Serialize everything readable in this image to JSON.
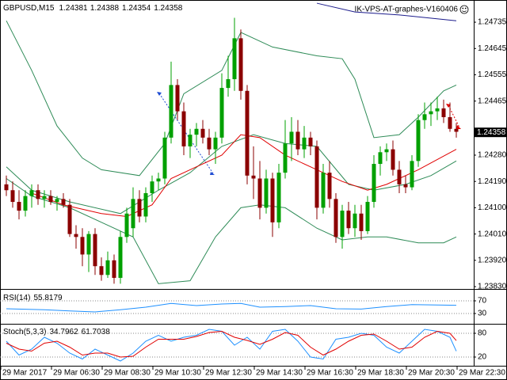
{
  "chart_data": [
    {
      "type": "candlestick",
      "title": "GBPUSD,M15",
      "header_values": [
        1.24381,
        1.24388,
        1.24354,
        1.24358
      ],
      "watermark": "IK-VPS-AT-graphes-V160406",
      "open": [
        1.2418,
        1.2416,
        1.2412,
        1.2409,
        1.2414,
        1.2416,
        1.2413,
        1.2414,
        1.2412,
        1.2413,
        1.2411,
        1.2401,
        1.24,
        1.2394,
        1.2401,
        1.239,
        1.2387,
        1.2392,
        1.2386,
        1.24,
        1.2403,
        1.2413,
        1.2407,
        1.2415,
        1.2419,
        1.242,
        1.2434,
        1.2452,
        1.2443,
        1.2431,
        1.2435,
        1.2437,
        1.2434,
        1.243,
        1.2434,
        1.2451,
        1.2454,
        1.2468,
        1.245,
        1.2421,
        1.242,
        1.241,
        1.242,
        1.2405,
        1.2422,
        1.2432,
        1.2436,
        1.243,
        1.2434,
        1.2431,
        1.241,
        1.2422,
        1.2413,
        1.24,
        1.2409,
        1.2403,
        1.2408,
        1.2402,
        1.2412,
        1.2425,
        1.2429,
        1.243,
        1.2423,
        1.2418,
        1.2417,
        1.2426,
        1.244,
        1.2442,
        1.2443,
        1.2444,
        1.2441,
        1.2437
      ],
      "high": [
        1.2421,
        1.2419,
        1.2416,
        1.2416,
        1.2418,
        1.2418,
        1.2416,
        1.2416,
        1.2414,
        1.2415,
        1.2413,
        1.2404,
        1.2403,
        1.2402,
        1.2403,
        1.2393,
        1.2395,
        1.2394,
        1.2402,
        1.241,
        1.2417,
        1.2416,
        1.2417,
        1.2421,
        1.2422,
        1.2436,
        1.246,
        1.2454,
        1.2446,
        1.2437,
        1.2439,
        1.244,
        1.2437,
        1.2436,
        1.2456,
        1.2462,
        1.2475,
        1.2471,
        1.2452,
        1.2431,
        1.2426,
        1.2423,
        1.2422,
        1.2425,
        1.244,
        1.2441,
        1.244,
        1.2438,
        1.2436,
        1.2433,
        1.2425,
        1.2426,
        1.2415,
        1.2411,
        1.2412,
        1.2411,
        1.2411,
        1.2414,
        1.2428,
        1.2431,
        1.2432,
        1.2433,
        1.2426,
        1.2421,
        1.2428,
        1.2442,
        1.2446,
        1.2446,
        1.2448,
        1.2447,
        1.2446,
        1.2439
      ],
      "low": [
        1.2414,
        1.241,
        1.2406,
        1.2407,
        1.241,
        1.2411,
        1.241,
        1.2411,
        1.2409,
        1.241,
        1.24,
        1.2396,
        1.239,
        1.2388,
        1.2387,
        1.2385,
        1.2386,
        1.2384,
        1.2384,
        1.2398,
        1.24,
        1.2405,
        1.2405,
        1.2412,
        1.2416,
        1.2418,
        1.2432,
        1.244,
        1.2428,
        1.2427,
        1.2431,
        1.2432,
        1.2428,
        1.2425,
        1.2432,
        1.2448,
        1.245,
        1.2447,
        1.2418,
        1.2413,
        1.2406,
        1.2408,
        1.24,
        1.2403,
        1.242,
        1.2426,
        1.2428,
        1.2427,
        1.2428,
        1.2406,
        1.2408,
        1.241,
        1.2398,
        1.2396,
        1.2401,
        1.24,
        1.2399,
        1.2401,
        1.241,
        1.2421,
        1.2426,
        1.2421,
        1.2415,
        1.2415,
        1.2416,
        1.2424,
        1.2437,
        1.2438,
        1.244,
        1.2439,
        1.2436,
        1.2434
      ],
      "close": [
        1.2416,
        1.2412,
        1.2409,
        1.2414,
        1.2416,
        1.2413,
        1.2414,
        1.2412,
        1.2413,
        1.2411,
        1.2401,
        1.24,
        1.2394,
        1.2401,
        1.239,
        1.2387,
        1.2392,
        1.2386,
        1.24,
        1.2408,
        1.2413,
        1.2407,
        1.2415,
        1.2419,
        1.242,
        1.2434,
        1.2452,
        1.2443,
        1.2431,
        1.2435,
        1.2437,
        1.2434,
        1.243,
        1.2434,
        1.2451,
        1.2454,
        1.2468,
        1.245,
        1.2421,
        1.242,
        1.241,
        1.242,
        1.2405,
        1.2422,
        1.2432,
        1.2436,
        1.243,
        1.2434,
        1.2431,
        1.241,
        1.2422,
        1.2413,
        1.24,
        1.2409,
        1.2403,
        1.2408,
        1.2402,
        1.2412,
        1.2425,
        1.2429,
        1.243,
        1.2423,
        1.2418,
        1.2417,
        1.2426,
        1.244,
        1.2442,
        1.2443,
        1.2444,
        1.2441,
        1.2437,
        1.2436
      ],
      "up_color": "#00a000",
      "down_color": "#8b0000",
      "ylim": [
        1.23822,
        1.24811
      ],
      "yticks": [
        {
          "value": 1.24735,
          "label": "1.24735"
        },
        {
          "value": 1.24645,
          "label": "1.24645"
        },
        {
          "value": 1.24555,
          "label": "1.24555"
        },
        {
          "value": 1.24465,
          "label": "1.24465"
        },
        {
          "value": 1.2428,
          "label": "1.24280"
        },
        {
          "value": 1.2419,
          "label": "1.24190"
        },
        {
          "value": 1.241,
          "label": "1.24100"
        },
        {
          "value": 1.2401,
          "label": "1.24010"
        },
        {
          "value": 1.2392,
          "label": "1.23920"
        },
        {
          "value": 1.2383,
          "label": "1.23830"
        }
      ],
      "current_price": 1.24358,
      "series": [
        {
          "color": "#2e8b57",
          "x": [
            0,
            4,
            8,
            12,
            15,
            21,
            25,
            28,
            34,
            37,
            42,
            49,
            53,
            55,
            58,
            62,
            65,
            69,
            71
          ],
          "values": [
            1.2474,
            1.2457,
            1.2438,
            1.2427,
            1.2423,
            1.2421,
            1.2432,
            1.2449,
            1.2457,
            1.247,
            1.2465,
            1.2462,
            1.2461,
            1.2454,
            1.2434,
            1.2435,
            1.2441,
            1.245,
            1.2452
          ]
        },
        {
          "color": "#2e8b57",
          "x": [
            0,
            4,
            10,
            18,
            24,
            29,
            34,
            39,
            44,
            49,
            54,
            58,
            63,
            67,
            71
          ],
          "values": [
            1.2424,
            1.2416,
            1.2412,
            1.2408,
            1.2416,
            1.2422,
            1.2431,
            1.2435,
            1.2432,
            1.2431,
            1.2418,
            1.2416,
            1.2418,
            1.2421,
            1.2426
          ]
        },
        {
          "color": "#2e8b57",
          "x": [
            0,
            4,
            10,
            15,
            20,
            24,
            29,
            33,
            37,
            40,
            44,
            49,
            53,
            57,
            60,
            65,
            69,
            71
          ],
          "values": [
            1.242,
            1.2414,
            1.241,
            1.2405,
            1.24,
            1.2384,
            1.2385,
            1.24,
            1.241,
            1.2411,
            1.241,
            1.2403,
            1.2399,
            1.24,
            1.24,
            1.2398,
            1.2398,
            1.24
          ]
        },
        {
          "color": "#e00000",
          "x": [
            4,
            9,
            15,
            19,
            23,
            26,
            30,
            34,
            37,
            40,
            44,
            49,
            53,
            57,
            60,
            65,
            71
          ],
          "values": [
            1.2415,
            1.2411,
            1.2408,
            1.2407,
            1.2411,
            1.242,
            1.2424,
            1.2428,
            1.2435,
            1.2434,
            1.2428,
            1.2423,
            1.2419,
            1.2416,
            1.2418,
            1.2423,
            1.243
          ]
        },
        {
          "color": "#1c1c8c",
          "x": [
            49,
            55,
            62,
            71
          ],
          "values": [
            1.248,
            1.2477,
            1.2476,
            1.2474
          ]
        }
      ]
    },
    {
      "type": "line",
      "title": "RSI(14)",
      "title_values": [
        55.8179
      ],
      "ylim": [
        0,
        100
      ],
      "yticks": [
        70,
        30
      ],
      "series": [
        {
          "color": "#1e90ff",
          "x": [
            0,
            6,
            10,
            14,
            18,
            22,
            26,
            30,
            34,
            37,
            40,
            44,
            48,
            52,
            56,
            60,
            64,
            68,
            71
          ],
          "values": [
            45,
            42,
            38,
            35,
            42,
            50,
            62,
            55,
            60,
            62,
            50,
            52,
            55,
            45,
            44,
            52,
            58,
            57,
            55.8179
          ]
        }
      ]
    },
    {
      "type": "line",
      "title": "Stoch(5,3,3)",
      "title_values": [
        34.7962,
        61.7038
      ],
      "ylim": [
        0,
        100
      ],
      "yticks": [
        80,
        20
      ],
      "series": [
        {
          "color": "#1e90ff",
          "x": [
            0,
            2,
            4,
            6,
            8,
            10,
            12,
            14,
            16,
            18,
            20,
            22,
            24,
            26,
            28,
            30,
            32,
            34,
            36,
            38,
            40,
            42,
            44,
            46,
            48,
            50,
            52,
            54,
            56,
            58,
            60,
            62,
            64,
            66,
            68,
            70,
            71
          ],
          "values": [
            60,
            25,
            40,
            70,
            55,
            30,
            15,
            40,
            25,
            10,
            30,
            60,
            75,
            60,
            70,
            75,
            90,
            85,
            50,
            70,
            40,
            85,
            90,
            60,
            20,
            15,
            65,
            70,
            80,
            75,
            45,
            30,
            60,
            90,
            85,
            70,
            34.7962
          ]
        },
        {
          "color": "#e00000",
          "x": [
            0,
            2,
            4,
            6,
            8,
            10,
            12,
            14,
            16,
            18,
            20,
            22,
            24,
            26,
            28,
            30,
            32,
            34,
            36,
            38,
            40,
            42,
            44,
            46,
            48,
            50,
            52,
            54,
            56,
            58,
            60,
            62,
            64,
            66,
            68,
            70,
            71
          ],
          "values": [
            55,
            40,
            35,
            55,
            60,
            45,
            25,
            30,
            30,
            20,
            22,
            45,
            65,
            65,
            65,
            72,
            82,
            85,
            70,
            62,
            52,
            65,
            82,
            75,
            45,
            25,
            40,
            60,
            75,
            78,
            60,
            40,
            45,
            70,
            85,
            80,
            61.7038
          ]
        }
      ]
    }
  ],
  "x_labels": [
    "29 Mar 2017",
    "29 Mar 06:30",
    "29 Mar 08:30",
    "29 Mar 10:30",
    "29 Mar 12:30",
    "29 Mar 14:30",
    "29 Mar 16:30",
    "29 Mar 18:30",
    "29 Mar 20:30",
    "29 Mar 22:30"
  ]
}
